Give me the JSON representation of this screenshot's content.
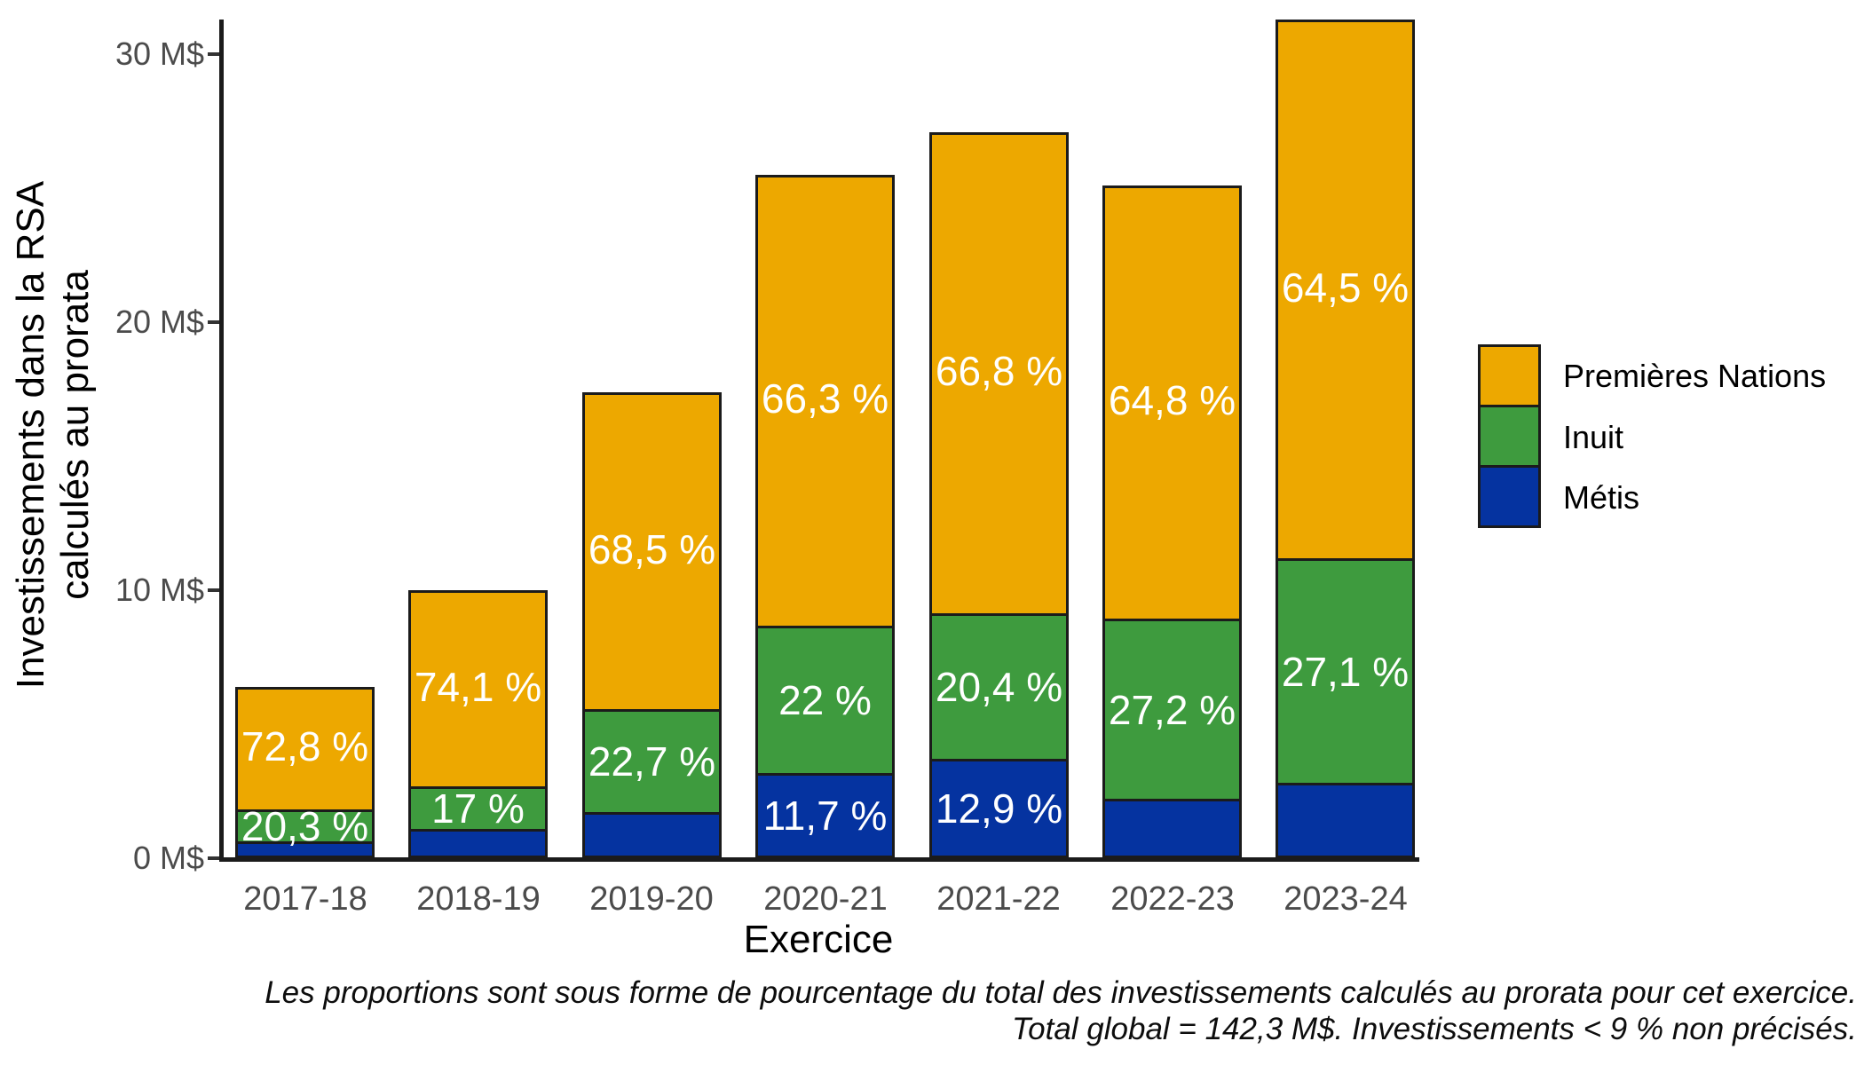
{
  "y_axis": {
    "title_lines": [
      "Investissements dans la RSA",
      "calculés au prorata"
    ],
    "ticks": [
      {
        "label": "0 M$",
        "value": 0
      },
      {
        "label": "10 M$",
        "value": 10
      },
      {
        "label": "20 M$",
        "value": 20
      },
      {
        "label": "30 M$",
        "value": 30
      }
    ]
  },
  "x_axis": {
    "title": "Exercice"
  },
  "legend": [
    {
      "label": "Premières Nations",
      "color": "#EDA800"
    },
    {
      "label": "Inuit",
      "color": "#3E9B3E"
    },
    {
      "label": "Métis",
      "color": "#0533A0"
    }
  ],
  "caption_lines": [
    "Les proportions sont sous forme de pourcentage du total des investissements calculés au prorata pour cet exercice.",
    "Total global = 142,3 M$. Investissements < 9 % non précisés."
  ],
  "colors": {
    "premieres_nations": "#EDA800",
    "inuit": "#3E9B3E",
    "metis": "#0533A0",
    "axis_line": "#1b1b1b",
    "tick_text": "#4b4b4b",
    "bar_label_text": "#ffffff"
  },
  "chart_data": {
    "type": "bar",
    "stacked": true,
    "title": "",
    "xlabel": "Exercice",
    "ylabel": "Investissements dans la RSA calculés au prorata",
    "ylim": [
      0,
      31.5
    ],
    "grid": false,
    "legend_position": "right",
    "categories": [
      "2017-18",
      "2018-19",
      "2019-20",
      "2020-21",
      "2021-22",
      "2022-23",
      "2023-24"
    ],
    "totals_M$": [
      6.4,
      10.0,
      17.4,
      25.5,
      27.1,
      25.1,
      31.3
    ],
    "total_global_M$": 142.3,
    "series": [
      {
        "name": "Métis",
        "color": "#0533A0",
        "stack_order": 0,
        "percent": [
          6.9,
          8.9,
          8.8,
          11.7,
          12.9,
          8.0,
          8.4
        ],
        "values_M$": [
          0.44,
          0.89,
          1.53,
          2.98,
          3.5,
          2.01,
          2.63
        ],
        "labels": [
          null,
          null,
          null,
          "11,7 %",
          "12,9 %",
          null,
          null
        ]
      },
      {
        "name": "Inuit",
        "color": "#3E9B3E",
        "stack_order": 1,
        "percent": [
          20.3,
          17.0,
          22.7,
          22.0,
          20.4,
          27.2,
          27.1
        ],
        "values_M$": [
          1.3,
          1.7,
          3.95,
          5.61,
          5.53,
          6.83,
          8.48
        ],
        "labels": [
          "20,3 %",
          "17 %",
          "22,7 %",
          "22 %",
          "20,4 %",
          "27,2 %",
          "27,1 %"
        ]
      },
      {
        "name": "Premières Nations",
        "color": "#EDA800",
        "stack_order": 2,
        "percent": [
          72.8,
          74.1,
          68.5,
          66.3,
          66.8,
          64.8,
          64.5
        ],
        "values_M$": [
          4.66,
          7.41,
          11.92,
          16.91,
          18.1,
          16.26,
          20.19
        ],
        "labels": [
          "72,8 %",
          "74,1 %",
          "68,5 %",
          "66,3 %",
          "66,8 %",
          "64,8 %",
          "64,5 %"
        ]
      }
    ],
    "note": "Investissements < 9 % non précisés"
  }
}
